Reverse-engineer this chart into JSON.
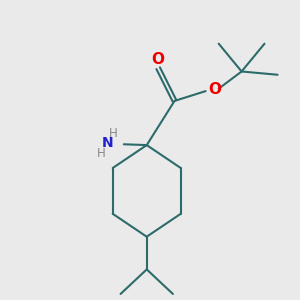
{
  "bg_color": "#eaeaea",
  "bond_color": "#2d6b6b",
  "bond_width": 1.5,
  "O_color": "#ee0000",
  "N_color": "#2222cc",
  "H_color": "#888888",
  "figsize": [
    3.0,
    3.0
  ],
  "dpi": 100,
  "xlim": [
    -0.55,
    1.15
  ],
  "ylim": [
    -1.05,
    0.75
  ]
}
